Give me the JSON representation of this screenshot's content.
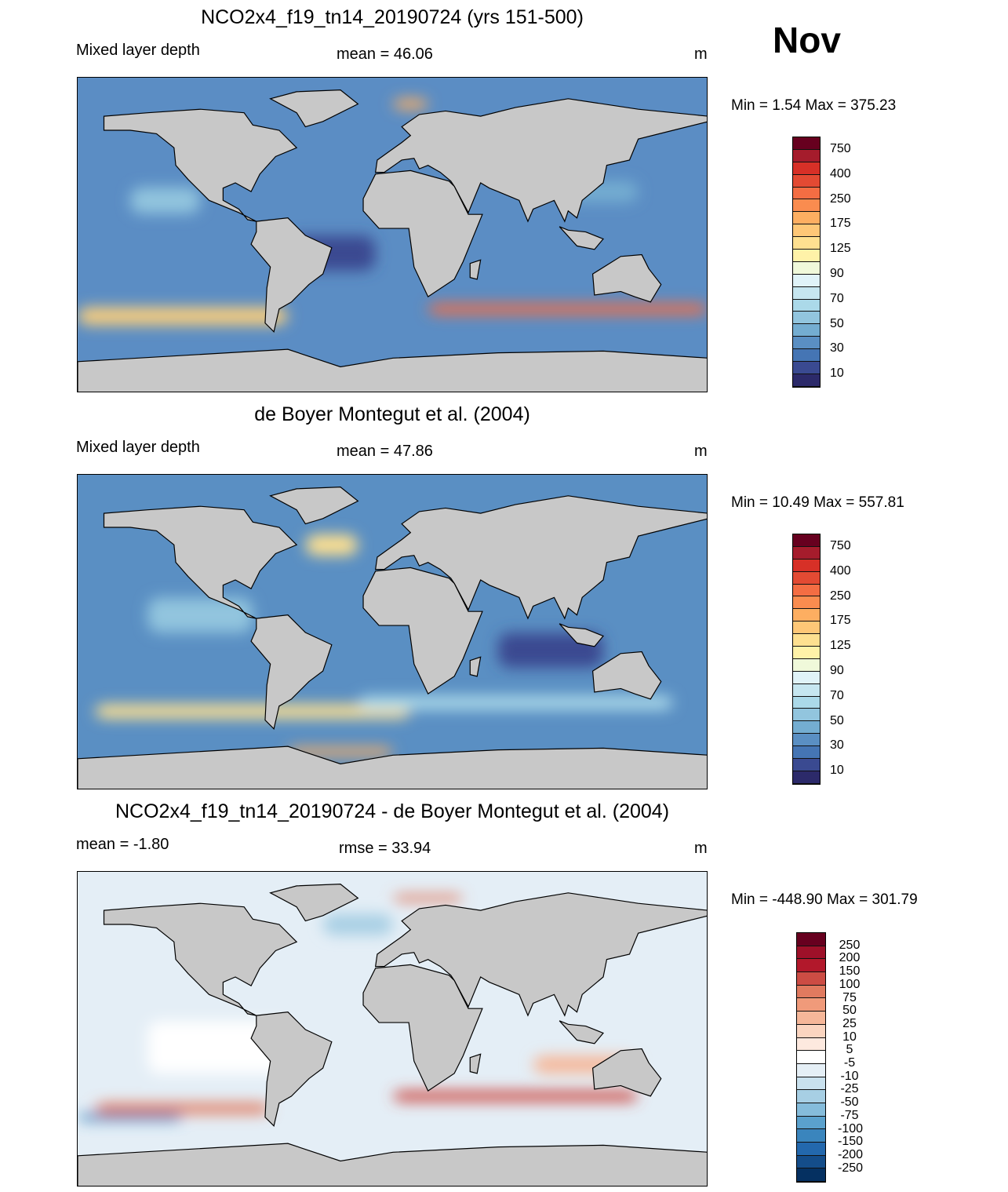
{
  "month": "Nov",
  "chart_data": [
    {
      "type": "heatmap",
      "title": "NCO2x4_f19_tn14_20190724 (yrs 151-500)",
      "left_label": "Mixed layer depth",
      "center_label": "mean =  46.06",
      "units": "m",
      "minmax": "Min =    1.54 Max = 375.23",
      "colorbar_labels": [
        "750",
        "400",
        "250",
        "175",
        "125",
        "90",
        "70",
        "50",
        "30",
        "10"
      ],
      "colors": [
        "#67001f",
        "#a51c2c",
        "#d73027",
        "#e34a33",
        "#f46d43",
        "#fa8c4f",
        "#fdae61",
        "#fec777",
        "#fee090",
        "#fff2a8",
        "#f0f9da",
        "#e0f3f8",
        "#c6e6f0",
        "#abd9e9",
        "#92c5de",
        "#74add1",
        "#5a8fc3",
        "#4575b4",
        "#3a4a91",
        "#2c2a6a"
      ],
      "ocean": "#5b8dc4"
    },
    {
      "type": "heatmap",
      "title": "de Boyer Montegut et al. (2004)",
      "left_label": "Mixed layer depth",
      "center_label": "mean =  47.86",
      "units": "m",
      "minmax": "Min =  10.49 Max = 557.81",
      "colorbar_labels": [
        "750",
        "400",
        "250",
        "175",
        "125",
        "90",
        "70",
        "50",
        "30",
        "10"
      ],
      "colors": [
        "#67001f",
        "#a51c2c",
        "#d73027",
        "#e34a33",
        "#f46d43",
        "#fa8c4f",
        "#fdae61",
        "#fec777",
        "#fee090",
        "#fff2a8",
        "#f0f9da",
        "#e0f3f8",
        "#c6e6f0",
        "#abd9e9",
        "#92c5de",
        "#74add1",
        "#5a8fc3",
        "#4575b4",
        "#3a4a91",
        "#2c2a6a"
      ],
      "ocean": "#5a8fc3"
    },
    {
      "type": "heatmap",
      "title": "NCO2x4_f19_tn14_20190724 - de Boyer Montegut et al. (2004)",
      "left_label": "mean =  -1.80",
      "center_label": "rmse =  33.94",
      "units": "m",
      "minmax": "Min = -448.90 Max = 301.79",
      "colorbar_labels": [
        "250",
        "200",
        "150",
        "100",
        "75",
        "50",
        "25",
        "10",
        "5",
        "-5",
        "-10",
        "-25",
        "-50",
        "-75",
        "-100",
        "-150",
        "-200",
        "-250"
      ],
      "colors": [
        "#67001f",
        "#9e1029",
        "#b2182b",
        "#cc4c44",
        "#e07a5f",
        "#f09a7a",
        "#f6b799",
        "#fbd5c0",
        "#fde9df",
        "#ffffff",
        "#e5eff6",
        "#c9e1ee",
        "#a7cfe4",
        "#85bcdb",
        "#5aa1cd",
        "#3a85bd",
        "#2368ad",
        "#144d8a",
        "#053061"
      ],
      "ocean": "#e4eef6"
    }
  ]
}
